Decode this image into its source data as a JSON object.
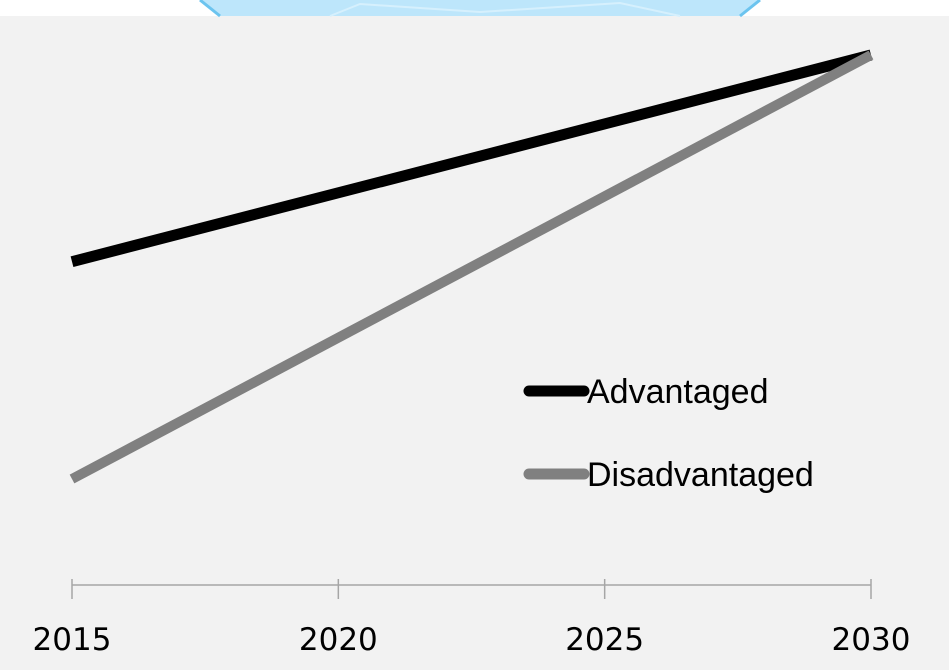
{
  "chart_data": {
    "type": "line",
    "x": [
      2015,
      2030
    ],
    "xticks": [
      2015,
      2020,
      2025,
      2030
    ],
    "xtick_labels": [
      "2015",
      "2020",
      "2025",
      "2030"
    ],
    "ylim": [
      0,
      100
    ],
    "grid": false,
    "legend_position": "center-right",
    "title": "",
    "xlabel": "",
    "ylabel": "",
    "series": [
      {
        "name": "Advantaged",
        "values": [
          61,
          100
        ],
        "color": "#000000"
      },
      {
        "name": "Disadvantaged",
        "values": [
          20,
          100
        ],
        "color": "#808080"
      }
    ]
  },
  "colors": {
    "plot_background": "#f2f2f2",
    "top_banner": "#bde6fb",
    "axis": "#a6a6a6"
  }
}
